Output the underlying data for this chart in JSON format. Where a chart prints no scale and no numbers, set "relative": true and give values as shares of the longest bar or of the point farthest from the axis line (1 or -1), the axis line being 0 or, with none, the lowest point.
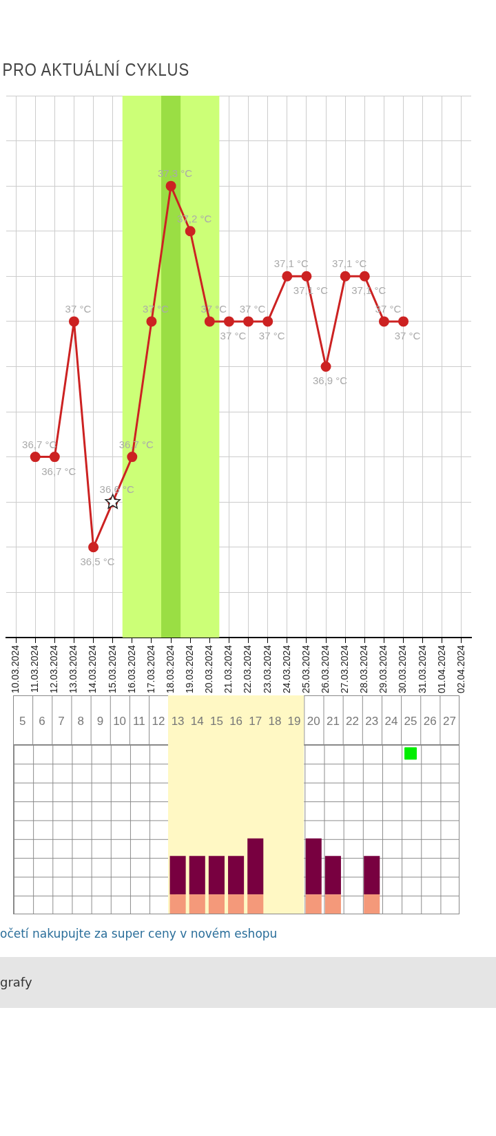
{
  "chart_data": [
    {
      "type": "line",
      "title": "PRO AKTUÁLNÍ CYKLUS",
      "categories": [
        "10.03.2024",
        "11.03.2024",
        "12.03.2024",
        "13.03.2024",
        "14.03.2024",
        "15.03.2024",
        "16.03.2024",
        "17.03.2024",
        "18.03.2024",
        "19.03.2024",
        "20.03.2024",
        "21.03.2024",
        "22.03.2024",
        "23.03.2024",
        "24.03.2024",
        "25.03.2024",
        "26.03.2024",
        "27.03.2024",
        "28.03.2024",
        "29.03.2024",
        "30.03.2024",
        "31.03.2024",
        "01.04.2024",
        "02.04.2024"
      ],
      "series": [
        {
          "color": "#cc2222",
          "marker": "circle",
          "values": [
            null,
            36.7,
            36.7,
            37.0,
            36.5,
            36.6,
            36.7,
            37.0,
            37.3,
            37.2,
            37.0,
            37.0,
            37.0,
            37.0,
            37.1,
            37.1,
            36.9,
            37.1,
            37.1,
            37.0,
            37.0,
            null,
            null,
            null
          ],
          "value_labels": [
            null,
            "36,7 °C",
            "36,7 °C",
            "37 °C",
            "36,5 °C",
            "36,6 °C",
            "36,7 °C",
            "37 °C",
            "37,3 °C",
            "37,2 °C",
            "37 °C",
            "37 °C",
            "37 °C",
            "37 °C",
            "37,1 °C",
            "37,1 °C",
            "36,9 °C",
            "37,1 °C",
            "37,1 °C",
            "37 °C",
            "37 °C",
            null,
            null,
            null
          ]
        },
        {
          "type": "scatter",
          "color": "#ffffff",
          "marker": "star",
          "x": [
            "15.03.2024"
          ],
          "values": [
            36.6
          ]
        }
      ],
      "ylim": [
        36.3,
        37.5
      ],
      "yticks": [
        {
          "value": 36.3,
          "label": null
        },
        {
          "value": 36.4,
          "label": null
        },
        {
          "value": 36.5,
          "label": null
        },
        {
          "value": 36.6,
          "label": null
        },
        {
          "value": 36.7,
          "label": null
        },
        {
          "value": 36.8,
          "label": null
        },
        {
          "value": 36.9,
          "label": null
        },
        {
          "value": 37.0,
          "label": null
        },
        {
          "value": 37.1,
          "label": null
        },
        {
          "value": 37.2,
          "label": null
        },
        {
          "value": 37.3,
          "label": null
        },
        {
          "value": 37.4,
          "label": null
        },
        {
          "value": 37.5,
          "label": null
        }
      ],
      "tick_labels": "x",
      "bands": [
        {
          "axis": "x",
          "from": "16.03.2024",
          "to": "20.03.2024",
          "color": "#ccff77"
        },
        {
          "axis": "x",
          "from": "18.03.2024",
          "to": "18.03.2024",
          "color": "#9ade44"
        }
      ],
      "grid": true,
      "legend": false
    },
    {
      "type": "bar",
      "stacked": true,
      "relative": true,
      "categories": [
        "5",
        "6",
        "7",
        "8",
        "9",
        "10",
        "11",
        "12",
        "13",
        "14",
        "15",
        "16",
        "17",
        "18",
        "19",
        "20",
        "21",
        "22",
        "23",
        "24",
        "25",
        "26",
        "27"
      ],
      "series": [
        {
          "color": "#f4997a",
          "values": [
            null,
            null,
            null,
            null,
            null,
            null,
            null,
            null,
            0.12,
            0.12,
            0.12,
            0.12,
            0.12,
            null,
            null,
            0.12,
            0.12,
            null,
            0.12,
            null,
            null,
            null,
            null
          ]
        },
        {
          "color": "#780040",
          "values": [
            null,
            null,
            null,
            null,
            null,
            null,
            null,
            null,
            0.24,
            0.24,
            0.24,
            0.24,
            0.35,
            null,
            null,
            0.35,
            0.24,
            null,
            0.24,
            null,
            null,
            null,
            null
          ]
        },
        {
          "type": "scatter",
          "color": "#00ee00",
          "marker": "square",
          "x": [
            "25"
          ],
          "values": [
            1
          ]
        }
      ],
      "bands": [
        {
          "axis": "x",
          "from": "13",
          "to": "19",
          "color": "#fff8c4"
        }
      ],
      "annotations": [
        "očetí nakupujte za super ceny v novém eshopu",
        "grafy"
      ]
    }
  ]
}
